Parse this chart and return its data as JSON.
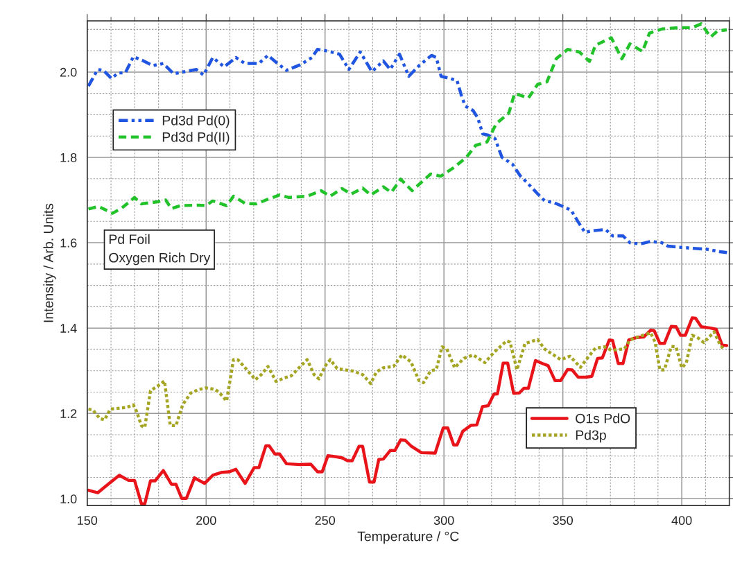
{
  "chart_data": {
    "type": "line",
    "xlabel": "Temperature / °C",
    "ylabel": "Intensity / Arb. Units",
    "xlim": [
      150,
      420
    ],
    "xticks": [
      150,
      200,
      250,
      300,
      350,
      400
    ],
    "ylim": [
      0.984,
      2.12
    ],
    "yticks": [
      {
        "value": 1,
        "label": "1.0"
      },
      {
        "value": 1.2,
        "label": "1.2"
      },
      {
        "value": 1.4,
        "label": "1.4"
      },
      {
        "value": 1.6,
        "label": "1.6"
      },
      {
        "value": 1.8,
        "label": "1.8"
      },
      {
        "value": 2,
        "label": "2.0"
      }
    ],
    "grid": true,
    "legend": [
      "upper left",
      "lower right"
    ],
    "annotations": [
      "Pd Foil\nOxygen Rich Dry"
    ],
    "series": [
      {
        "name": "Pd3d Pd(0)",
        "color": "#1f55e0",
        "line_style": "dashdot",
        "x": [
          150.5,
          154.4,
          156.8,
          160.2,
          163,
          166,
          169.4,
          173.7,
          177.6,
          182,
          186.3,
          191.2,
          195.9,
          198.9,
          202.8,
          207.6,
          212.5,
          216.3,
          222.1,
          226,
          230,
          233.8,
          239.6,
          244.5,
          246.8,
          250.3,
          256.1,
          260,
          264.8,
          269.7,
          274.5,
          277.4,
          281.3,
          285.2,
          289.5,
          294.8,
          296.8,
          298.8,
          302.6,
          305.5,
          307.6,
          309,
          312.2,
          314.2,
          316.3,
          318.6,
          321.5,
          324.4,
          328.8,
          332.3,
          334.6,
          339,
          342.4,
          346.2,
          350,
          353.5,
          356.4,
          359.3,
          362.2,
          368,
          370.9,
          375.3,
          378.2,
          382.6,
          386.9,
          391.6,
          394.2,
          400,
          404.4,
          410.2,
          416,
          419
        ],
        "values": [
          1.967,
          2.006,
          2.004,
          1.985,
          1.998,
          1.998,
          2.036,
          2.026,
          2.015,
          2.02,
          1.996,
          2.001,
          2.006,
          1.993,
          2.034,
          2.012,
          2.034,
          2.02,
          2.02,
          2.039,
          2.02,
          2.004,
          2.017,
          2.034,
          2.053,
          2.05,
          2.042,
          2.006,
          2.047,
          2.001,
          2.026,
          2.006,
          2.042,
          1.99,
          2.015,
          2.039,
          2.034,
          1.99,
          1.985,
          1.98,
          1.94,
          1.92,
          1.91,
          1.893,
          1.855,
          1.852,
          1.844,
          1.8,
          1.784,
          1.755,
          1.743,
          1.717,
          1.698,
          1.694,
          1.685,
          1.676,
          1.649,
          1.624,
          1.628,
          1.631,
          1.616,
          1.616,
          1.6,
          1.597,
          1.603,
          1.6,
          1.592,
          1.589,
          1.587,
          1.585,
          1.579,
          1.577
        ]
      },
      {
        "name": "Pd3d Pd(II)",
        "color": "#22c22a",
        "line_style": "dashed",
        "x": [
          150.5,
          154.8,
          160.6,
          164.5,
          169.9,
          172.8,
          179.6,
          183,
          185.4,
          189.2,
          197,
          199.9,
          202.8,
          208.6,
          211.5,
          216.4,
          221.2,
          225.1,
          230.9,
          234.8,
          242.5,
          248.3,
          252.2,
          257.1,
          261,
          265.8,
          269.2,
          274.5,
          277.9,
          281.8,
          286.6,
          294.4,
          298.7,
          304.1,
          309.4,
          313.3,
          318.1,
          322,
          327.3,
          329.7,
          335.5,
          339.4,
          343.3,
          347.2,
          352,
          356.9,
          361.2,
          363.7,
          370.4,
          374.8,
          378.2,
          383.5,
          386.4,
          391.7,
          398.5,
          404.4,
          408.2,
          412.1,
          415,
          418.9
        ],
        "values": [
          1.679,
          1.685,
          1.669,
          1.681,
          1.706,
          1.691,
          1.696,
          1.7,
          1.68,
          1.687,
          1.688,
          1.687,
          1.698,
          1.687,
          1.709,
          1.692,
          1.691,
          1.7,
          1.712,
          1.706,
          1.709,
          1.722,
          1.709,
          1.727,
          1.714,
          1.728,
          1.712,
          1.731,
          1.718,
          1.749,
          1.722,
          1.761,
          1.756,
          1.776,
          1.8,
          1.828,
          1.836,
          1.879,
          1.904,
          1.95,
          1.939,
          1.971,
          1.977,
          2.031,
          2.053,
          2.047,
          2.025,
          2.063,
          2.08,
          2.031,
          2.066,
          2.048,
          2.091,
          2.101,
          2.104,
          2.104,
          2.113,
          2.082,
          2.096,
          2.099
        ]
      },
      {
        "name": "O1s PdO",
        "color": "#e8141a",
        "line_style": "solid",
        "x": [
          150.5,
          154.4,
          159.2,
          163.5,
          167.4,
          169.9,
          172.8,
          174.2,
          176.6,
          178.6,
          182,
          185.4,
          187.3,
          189.7,
          191.7,
          195.1,
          199.4,
          202.8,
          206.7,
          209.6,
          212.5,
          216.4,
          220.2,
          222.2,
          225.1,
          226.5,
          228.9,
          230.9,
          233.8,
          239.6,
          244,
          246.9,
          248.8,
          251.2,
          255.1,
          257.1,
          259.5,
          261.4,
          264.3,
          265.8,
          268.7,
          270.6,
          272.6,
          274.5,
          277.4,
          279.4,
          281.8,
          283.7,
          286.1,
          290.5,
          296.3,
          299.7,
          301.6,
          304.1,
          305.5,
          307.9,
          311.3,
          313.8,
          316.2,
          318.6,
          321,
          322.5,
          324.9,
          326.8,
          329.3,
          331.7,
          333.6,
          335.5,
          338.5,
          341.4,
          343.8,
          346.7,
          349.1,
          352,
          353.9,
          356.4,
          359.8,
          362.2,
          364.6,
          366.6,
          369.5,
          370.9,
          373.3,
          375.3,
          377.7,
          381.1,
          384,
          386.9,
          388.4,
          390.8,
          392.7,
          395.6,
          397.6,
          399.5,
          401.5,
          404.4,
          405.8,
          408.2,
          412.1,
          414.5,
          417,
          418.9
        ],
        "values": [
          1.02,
          1.014,
          1.036,
          1.055,
          1.043,
          1.043,
          0.988,
          0.988,
          1.042,
          1.042,
          1.066,
          1.034,
          1.034,
          1.001,
          1.001,
          1.049,
          1.036,
          1.055,
          1.062,
          1.063,
          1.069,
          1.036,
          1.073,
          1.073,
          1.124,
          1.124,
          1.105,
          1.105,
          1.082,
          1.08,
          1.081,
          1.063,
          1.063,
          1.101,
          1.098,
          1.096,
          1.089,
          1.089,
          1.123,
          1.123,
          1.039,
          1.039,
          1.092,
          1.093,
          1.113,
          1.113,
          1.138,
          1.137,
          1.124,
          1.108,
          1.107,
          1.166,
          1.166,
          1.126,
          1.126,
          1.158,
          1.172,
          1.173,
          1.216,
          1.218,
          1.245,
          1.246,
          1.318,
          1.318,
          1.247,
          1.248,
          1.259,
          1.259,
          1.324,
          1.317,
          1.312,
          1.277,
          1.277,
          1.303,
          1.302,
          1.285,
          1.285,
          1.287,
          1.329,
          1.33,
          1.372,
          1.371,
          1.317,
          1.317,
          1.372,
          1.378,
          1.379,
          1.395,
          1.394,
          1.364,
          1.364,
          1.404,
          1.403,
          1.383,
          1.383,
          1.424,
          1.423,
          1.403,
          1.4,
          1.397,
          1.36,
          1.359
        ]
      },
      {
        "name": "Pd3p",
        "color": "#a5a524",
        "line_style": "dotted",
        "x": [
          150.5,
          152.4,
          155.3,
          157.3,
          159.7,
          163.1,
          166.5,
          169.4,
          170.8,
          172.8,
          174.2,
          176.6,
          179.6,
          182.5,
          184.9,
          187.3,
          190.2,
          193.6,
          196.5,
          199.9,
          203.8,
          205.7,
          208.6,
          211.5,
          213.5,
          216.4,
          220.7,
          223.2,
          226,
          229.4,
          232.8,
          235.8,
          238.7,
          242.5,
          245.4,
          247.4,
          250.3,
          252.2,
          255.1,
          261.9,
          265.8,
          269.2,
          271.6,
          274.5,
          278.8,
          282.3,
          286.1,
          289.5,
          291.4,
          294.4,
          296.8,
          299.2,
          301.2,
          304.5,
          308.4,
          312.3,
          317.2,
          321,
          326.4,
          327.8,
          330.7,
          334.1,
          339.4,
          342.3,
          349.1,
          353,
          357.4,
          359.8,
          363.7,
          367.5,
          370.4,
          375.8,
          378.2,
          382,
          386.9,
          388.8,
          390.8,
          392.7,
          395.6,
          397.6,
          400,
          401.9,
          404.4,
          406.8,
          409.3,
          413.6,
          416,
          418
        ],
        "values": [
          1.21,
          1.208,
          1.188,
          1.185,
          1.21,
          1.212,
          1.214,
          1.22,
          1.204,
          1.171,
          1.167,
          1.253,
          1.264,
          1.276,
          1.172,
          1.171,
          1.221,
          1.248,
          1.255,
          1.26,
          1.256,
          1.248,
          1.229,
          1.326,
          1.325,
          1.307,
          1.279,
          1.291,
          1.31,
          1.275,
          1.283,
          1.288,
          1.305,
          1.326,
          1.291,
          1.281,
          1.313,
          1.326,
          1.305,
          1.299,
          1.291,
          1.27,
          1.297,
          1.307,
          1.31,
          1.337,
          1.321,
          1.277,
          1.272,
          1.3,
          1.303,
          1.356,
          1.351,
          1.307,
          1.329,
          1.337,
          1.319,
          1.343,
          1.37,
          1.367,
          1.302,
          1.364,
          1.373,
          1.351,
          1.326,
          1.334,
          1.308,
          1.326,
          1.353,
          1.356,
          1.348,
          1.351,
          1.372,
          1.38,
          1.389,
          1.367,
          1.302,
          1.302,
          1.357,
          1.356,
          1.307,
          1.318,
          1.383,
          1.377,
          1.366,
          1.391,
          1.362,
          1.348
        ]
      }
    ]
  }
}
